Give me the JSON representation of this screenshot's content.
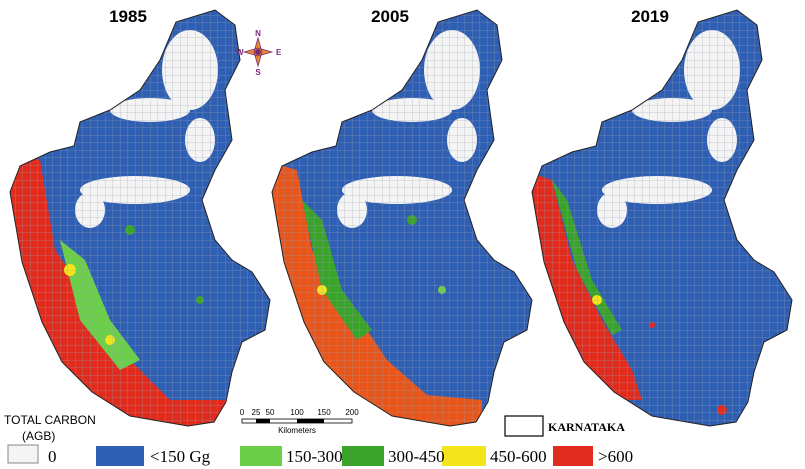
{
  "panels": [
    {
      "year": "1985"
    },
    {
      "year": "2005"
    },
    {
      "year": "2019"
    }
  ],
  "compass": {
    "north": "N",
    "south": "S",
    "east": "E",
    "west": "W"
  },
  "scale_bar": {
    "ticks": [
      "0",
      "25",
      "50",
      "100",
      "150",
      "200"
    ],
    "unit": "Kilometers"
  },
  "legend": {
    "title_line1": "TOTAL CARBON",
    "title_line2": "(AGB)",
    "items": [
      {
        "label": "0"
      },
      {
        "label": "<150 Gg"
      },
      {
        "label": "150-300"
      },
      {
        "label": "300-450"
      },
      {
        "label": "450-600"
      },
      {
        "label": ">600"
      }
    ],
    "boundary": "KARNATAKA"
  }
}
